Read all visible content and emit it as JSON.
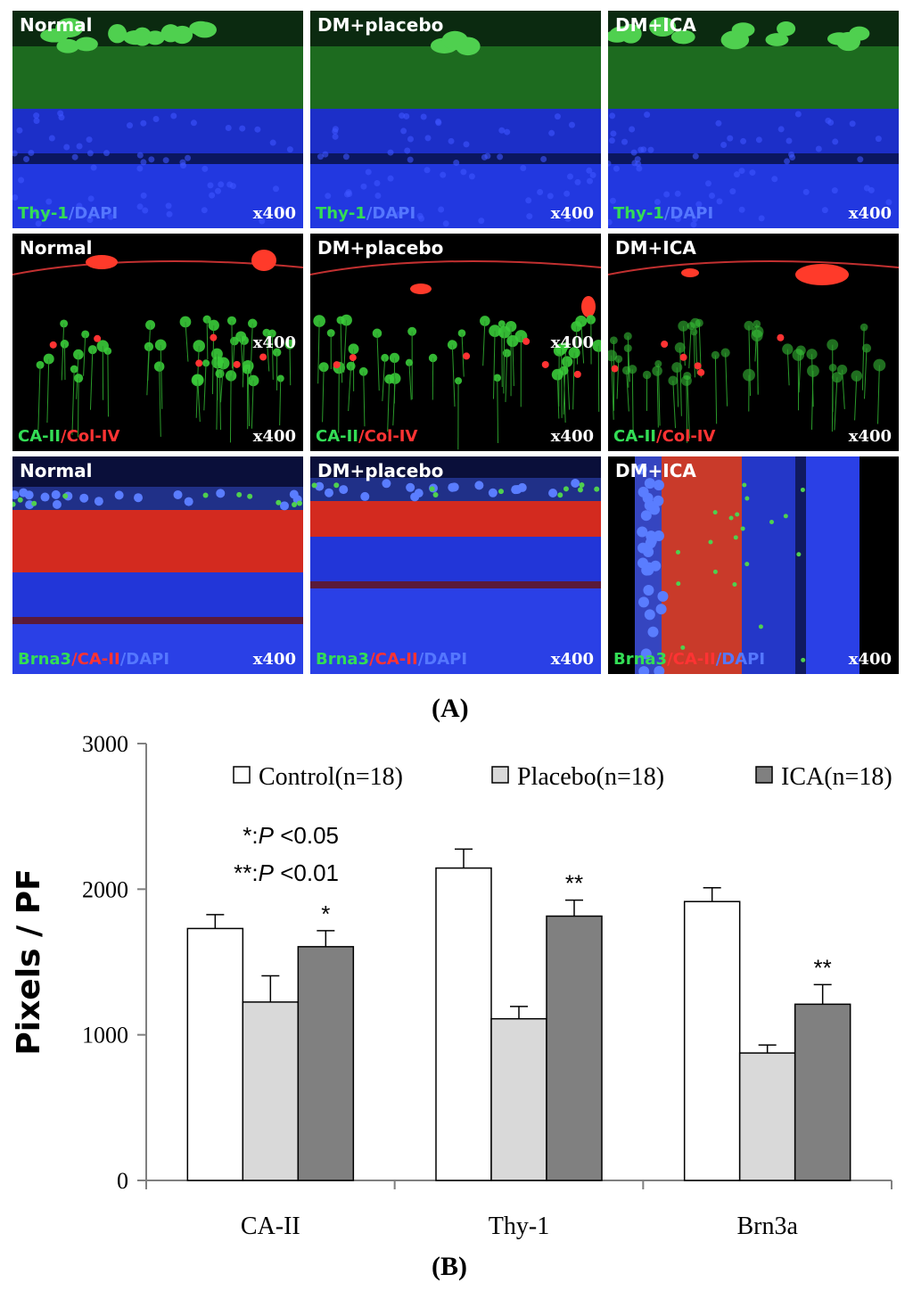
{
  "figure_a": {
    "label": "(A)",
    "panels": [
      {
        "title": "Normal",
        "stain": [
          [
            "Thy-1",
            "#33dd55"
          ],
          [
            "/DAPI",
            "#5577ff"
          ]
        ],
        "mag": "x400",
        "mag2": "",
        "type": "thy"
      },
      {
        "title": "DM+placebo",
        "stain": [
          [
            "Thy-1",
            "#33dd55"
          ],
          [
            "/DAPI",
            "#5577ff"
          ]
        ],
        "mag": "x400",
        "mag2": "",
        "type": "thy"
      },
      {
        "title": "DM+ICA",
        "stain": [
          [
            "Thy-1",
            "#33dd55"
          ],
          [
            "/DAPI",
            "#5577ff"
          ]
        ],
        "mag": "x400",
        "mag2": "",
        "type": "thy"
      },
      {
        "title": "Normal",
        "stain": [
          [
            "CA-II",
            "#33dd55"
          ],
          [
            "/Col-IV",
            "#ff3333"
          ]
        ],
        "mag": "x400",
        "mag2": "x400",
        "type": "ca"
      },
      {
        "title": "DM+placebo",
        "stain": [
          [
            "CA-II",
            "#33dd55"
          ],
          [
            "/Col-IV",
            "#ff3333"
          ]
        ],
        "mag": "x400",
        "mag2": "x400",
        "type": "ca"
      },
      {
        "title": "DM+ICA",
        "stain": [
          [
            "CA-II",
            "#33dd55"
          ],
          [
            "/Col-IV",
            "#ff3333"
          ]
        ],
        "mag": "x400",
        "mag2": "",
        "type": "ca"
      },
      {
        "title": "Normal",
        "stain": [
          [
            "Brna3",
            "#33dd55"
          ],
          [
            "/CA-II",
            "#ff3333"
          ],
          [
            "/DAPI",
            "#5577ff"
          ]
        ],
        "mag": "x400",
        "mag2": "",
        "type": "brn"
      },
      {
        "title": "DM+placebo",
        "stain": [
          [
            "Brna3",
            "#33dd55"
          ],
          [
            "/CA-II",
            "#ff3333"
          ],
          [
            "/DAPI",
            "#5577ff"
          ]
        ],
        "mag": "x400",
        "mag2": "",
        "type": "brn"
      },
      {
        "title": "DM+ICA",
        "stain": [
          [
            "Brna3",
            "#33dd55"
          ],
          [
            "/CA-II",
            "#ff3333"
          ],
          [
            "/DAPI",
            "#5577ff"
          ]
        ],
        "mag": "x400",
        "mag2": "",
        "type": "brn-rot"
      }
    ]
  },
  "figure_b_label": "(B)",
  "chart_data": {
    "type": "bar",
    "categories": [
      "CA-II",
      "Thy-1",
      "Brn3a"
    ],
    "series": [
      {
        "name": "Control(n=18)",
        "values": [
          1730,
          2145,
          1915
        ],
        "errors": [
          95,
          130,
          95
        ],
        "sig": [
          "",
          "",
          ""
        ],
        "color": "#ffffff"
      },
      {
        "name": "Placebo(n=18)",
        "values": [
          1225,
          1110,
          875
        ],
        "errors": [
          180,
          85,
          55
        ],
        "sig": [
          "",
          "",
          ""
        ],
        "color": "#d9d9d9"
      },
      {
        "name": "ICA(n=18)",
        "values": [
          1605,
          1815,
          1210
        ],
        "errors": [
          110,
          110,
          135
        ],
        "sig": [
          "*",
          "**",
          "**"
        ],
        "color": "#808080"
      }
    ],
    "ylabel": "Pixels / PF",
    "ylim": [
      0,
      3000
    ],
    "yticks": [
      0,
      1000,
      2000,
      3000
    ],
    "legend_position": "top",
    "grid": false,
    "annotations": [
      "*:P <0.05",
      "**:P <0.01"
    ]
  }
}
